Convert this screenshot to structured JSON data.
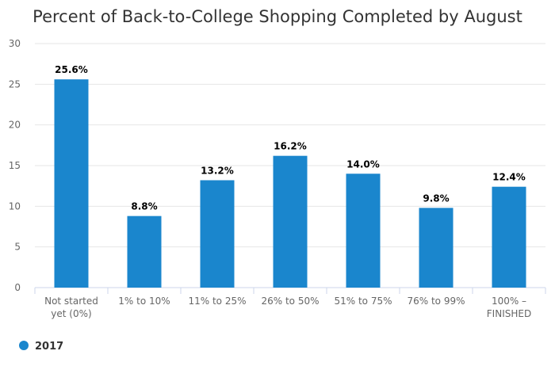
{
  "chart_data": {
    "type": "bar",
    "title": "Percent of Back-to-College Shopping Completed by August",
    "categories": [
      [
        "Not started",
        "yet (0%)"
      ],
      [
        "1% to 10%"
      ],
      [
        "11% to 25%"
      ],
      [
        "26% to 50%"
      ],
      [
        "51% to 75%"
      ],
      [
        "76% to 99%"
      ],
      [
        "100% –",
        "FINISHED"
      ]
    ],
    "series": [
      {
        "name": "2017",
        "values": [
          25.6,
          8.8,
          13.2,
          16.2,
          14.0,
          9.8,
          12.4
        ],
        "labels": [
          "25.6%",
          "8.8%",
          "13.2%",
          "16.2%",
          "14.0%",
          "9.8%",
          "12.4%"
        ],
        "color": "#1a86cd"
      }
    ],
    "ylim": [
      0,
      30
    ],
    "yticks": [
      0,
      5,
      10,
      15,
      20,
      25,
      30
    ],
    "grid": true,
    "legend_position": "bottom-left"
  }
}
